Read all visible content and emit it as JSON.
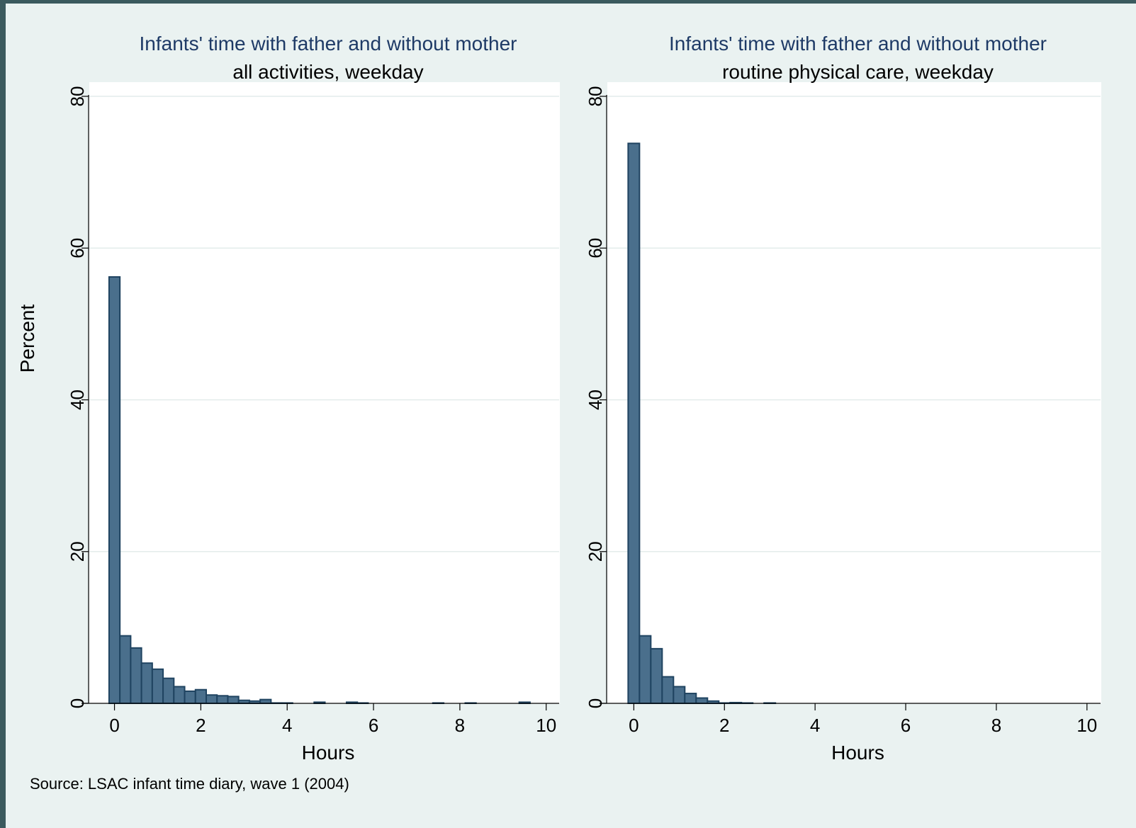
{
  "chart_data": [
    {
      "type": "bar",
      "title": "Infants' time with father and without mother",
      "subtitle": "all activities, weekday",
      "xlabel": "Hours",
      "ylabel": "Percent",
      "xlim": [
        -0.6,
        10.3
      ],
      "ylim": [
        0,
        80
      ],
      "xticks": [
        "0",
        "2",
        "4",
        "6",
        "8",
        "10"
      ],
      "yticks": [
        "0",
        "20",
        "40",
        "60",
        "80"
      ],
      "grid": true,
      "bin_width": 0.25,
      "bars": [
        {
          "x": 0.0,
          "y": 56.2
        },
        {
          "x": 0.25,
          "y": 8.9
        },
        {
          "x": 0.5,
          "y": 7.3
        },
        {
          "x": 0.75,
          "y": 5.3
        },
        {
          "x": 1.0,
          "y": 4.5
        },
        {
          "x": 1.25,
          "y": 3.3
        },
        {
          "x": 1.5,
          "y": 2.2
        },
        {
          "x": 1.75,
          "y": 1.6
        },
        {
          "x": 2.0,
          "y": 1.8
        },
        {
          "x": 2.25,
          "y": 1.1
        },
        {
          "x": 2.5,
          "y": 1.0
        },
        {
          "x": 2.75,
          "y": 0.9
        },
        {
          "x": 3.0,
          "y": 0.4
        },
        {
          "x": 3.25,
          "y": 0.3
        },
        {
          "x": 3.5,
          "y": 0.5
        },
        {
          "x": 3.75,
          "y": 0.05
        },
        {
          "x": 4.0,
          "y": 0.05
        },
        {
          "x": 4.75,
          "y": 0.15
        },
        {
          "x": 5.5,
          "y": 0.15
        },
        {
          "x": 5.75,
          "y": 0.05
        },
        {
          "x": 7.5,
          "y": 0.05
        },
        {
          "x": 8.25,
          "y": 0.05
        },
        {
          "x": 9.5,
          "y": 0.15
        }
      ]
    },
    {
      "type": "bar",
      "title": "Infants' time with father and without mother",
      "subtitle": "routine physical care, weekday",
      "xlabel": "Hours",
      "ylabel": "",
      "xlim": [
        -0.6,
        10.3
      ],
      "ylim": [
        0,
        80
      ],
      "xticks": [
        "0",
        "2",
        "4",
        "6",
        "8",
        "10"
      ],
      "yticks": [
        "0",
        "20",
        "40",
        "60",
        "80"
      ],
      "grid": true,
      "bin_width": 0.25,
      "bars": [
        {
          "x": 0.0,
          "y": 73.8
        },
        {
          "x": 0.25,
          "y": 8.9
        },
        {
          "x": 0.5,
          "y": 7.2
        },
        {
          "x": 0.75,
          "y": 3.5
        },
        {
          "x": 1.0,
          "y": 2.2
        },
        {
          "x": 1.25,
          "y": 1.3
        },
        {
          "x": 1.5,
          "y": 0.7
        },
        {
          "x": 1.75,
          "y": 0.3
        },
        {
          "x": 2.0,
          "y": 0.05
        },
        {
          "x": 2.25,
          "y": 0.1
        },
        {
          "x": 2.5,
          "y": 0.05
        },
        {
          "x": 3.0,
          "y": 0.05
        }
      ]
    }
  ],
  "note": "Source: LSAC infant time diary, wave 1 (2004)",
  "colors": {
    "outer_frame": "#3b5a5e",
    "background": "#eaf2f1",
    "plot_area": "#ffffff",
    "gridline": "#e3eceb",
    "bar_fill": "#4a6f8c",
    "bar_edge": "#1f4360",
    "title": "#1e3a66"
  }
}
